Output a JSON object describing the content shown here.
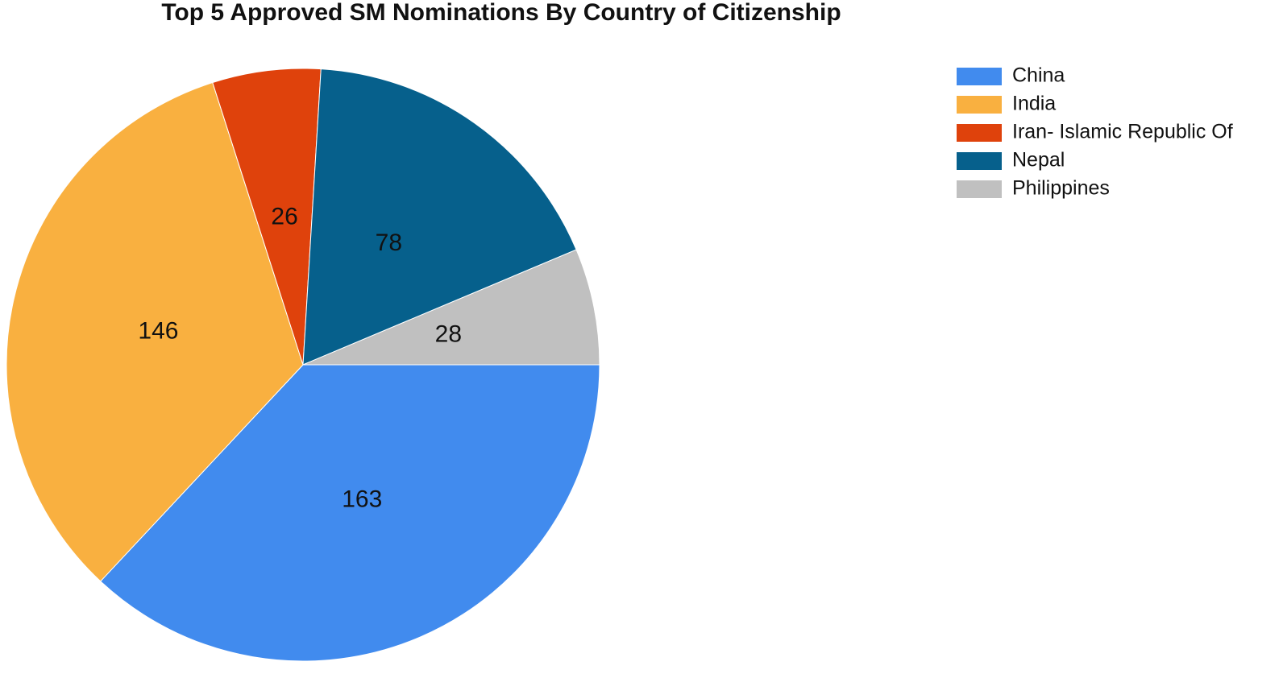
{
  "chart_data": {
    "type": "pie",
    "title": "Top 5 Approved SM Nominations By Country of Citizenship",
    "categories": [
      "China",
      "India",
      "Iran- Islamic Republic Of",
      "Nepal",
      "Philippines"
    ],
    "values": [
      163,
      146,
      26,
      78,
      28
    ],
    "colors": [
      "#418bee",
      "#f9b040",
      "#df420c",
      "#06608c",
      "#c0c0c0"
    ],
    "legend": "right"
  }
}
